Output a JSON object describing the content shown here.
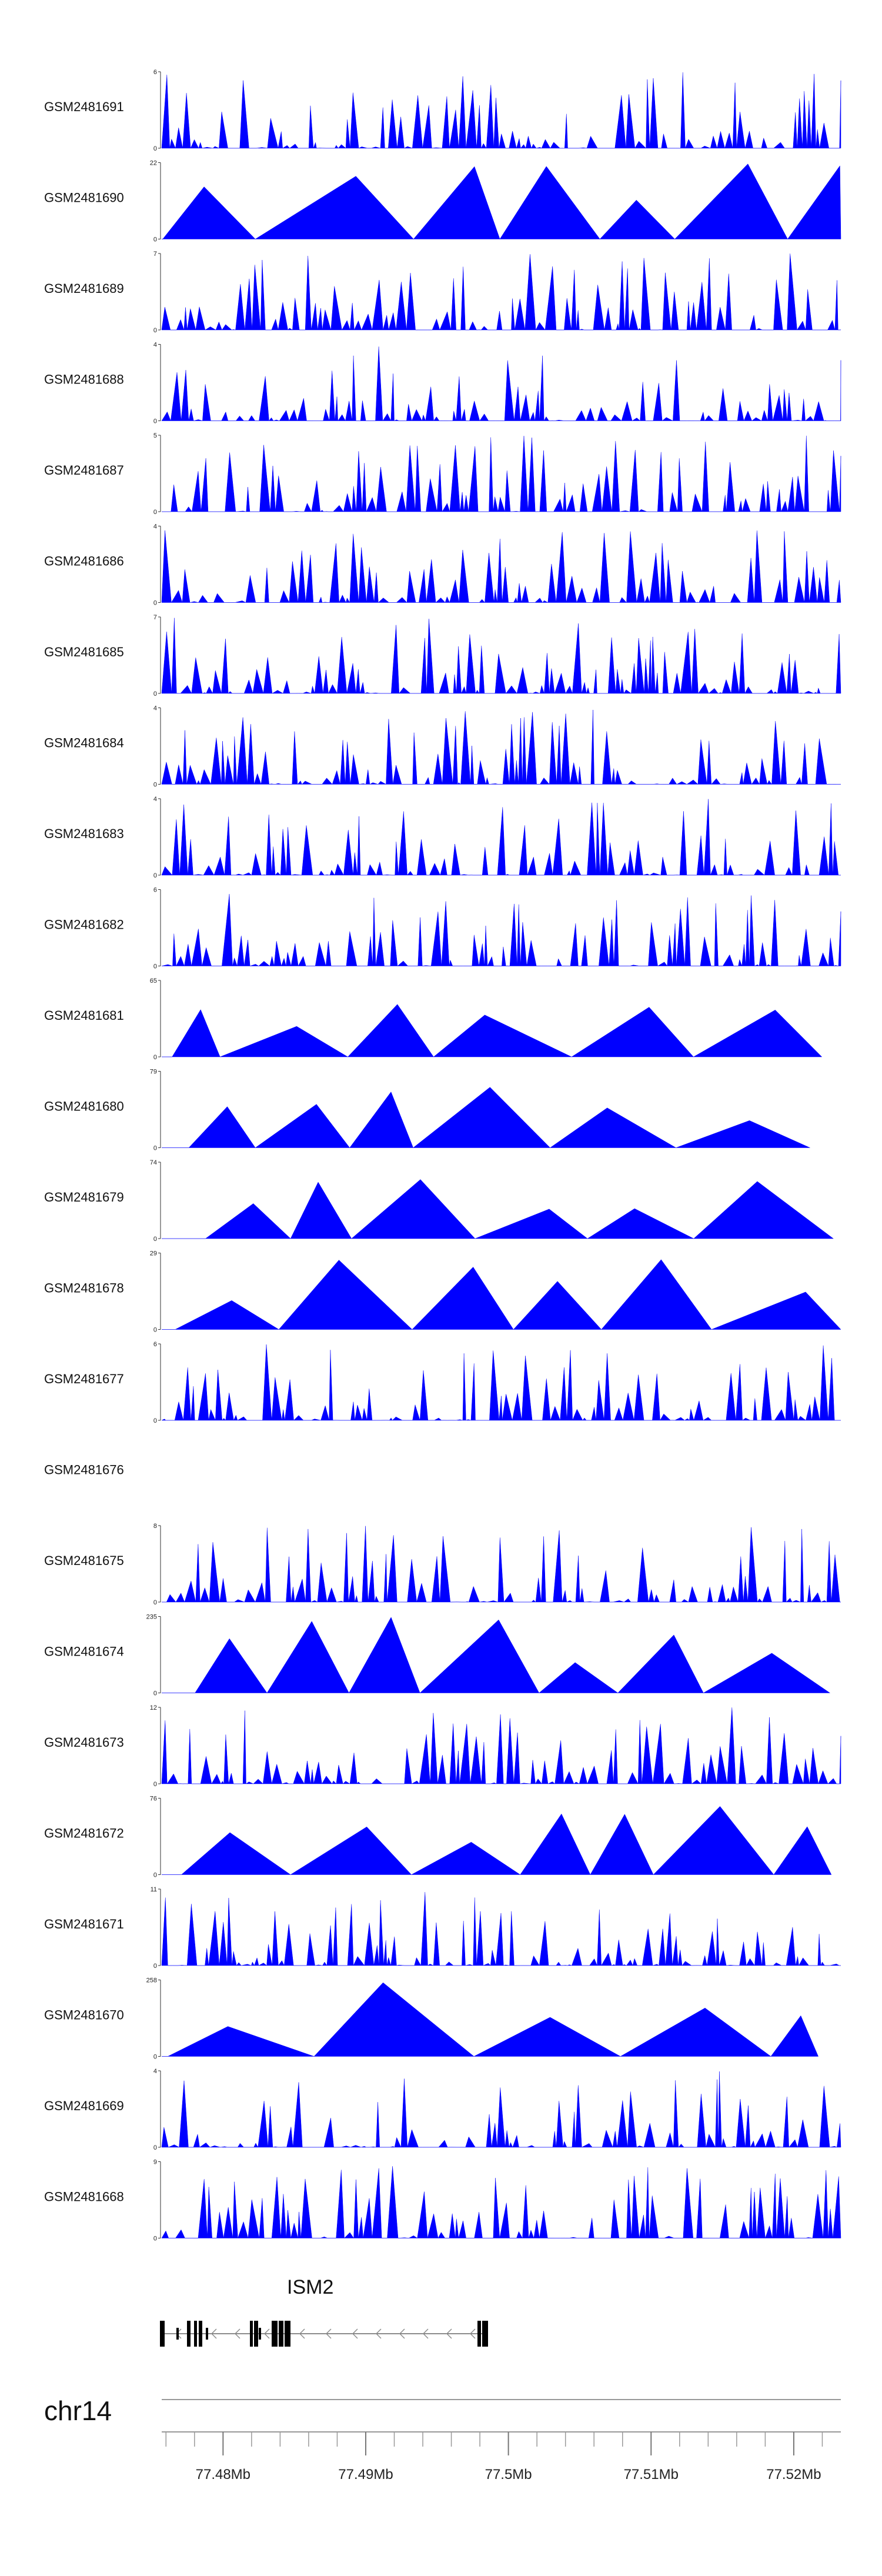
{
  "chart_data": {
    "type": "area",
    "title": "",
    "fill_color": "#0000ff",
    "series": [
      {
        "name": "GSM2481691",
        "ymax": 6,
        "style": "dense"
      },
      {
        "name": "GSM2481690",
        "ymax": 22,
        "style": "sparse"
      },
      {
        "name": "GSM2481689",
        "ymax": 7,
        "style": "dense"
      },
      {
        "name": "GSM2481688",
        "ymax": 4,
        "style": "dense"
      },
      {
        "name": "GSM2481687",
        "ymax": 5,
        "style": "dense"
      },
      {
        "name": "GSM2481686",
        "ymax": 4,
        "style": "dense"
      },
      {
        "name": "GSM2481685",
        "ymax": 7,
        "style": "dense"
      },
      {
        "name": "GSM2481684",
        "ymax": 4,
        "style": "dense"
      },
      {
        "name": "GSM2481683",
        "ymax": 4,
        "style": "dense"
      },
      {
        "name": "GSM2481682",
        "ymax": 6,
        "style": "dense"
      },
      {
        "name": "GSM2481681",
        "ymax": 65,
        "style": "sparse"
      },
      {
        "name": "GSM2481680",
        "ymax": 79,
        "style": "sparse"
      },
      {
        "name": "GSM2481679",
        "ymax": 74,
        "style": "sparse"
      },
      {
        "name": "GSM2481678",
        "ymax": 29,
        "style": "sparse"
      },
      {
        "name": "GSM2481677",
        "ymax": 6,
        "style": "dense"
      },
      {
        "name": "GSM2481676",
        "ymax": null,
        "style": "empty"
      },
      {
        "name": "GSM2481675",
        "ymax": 8,
        "style": "dense"
      },
      {
        "name": "GSM2481674",
        "ymax": 235,
        "style": "sparse"
      },
      {
        "name": "GSM2481673",
        "ymax": 12,
        "style": "dense"
      },
      {
        "name": "GSM2481672",
        "ymax": 76,
        "style": "sparse"
      },
      {
        "name": "GSM2481671",
        "ymax": 11,
        "style": "dense"
      },
      {
        "name": "GSM2481670",
        "ymax": 258,
        "style": "sparse"
      },
      {
        "name": "GSM2481669",
        "ymax": 4,
        "style": "dense"
      },
      {
        "name": "GSM2481668",
        "ymax": 9,
        "style": "dense"
      }
    ],
    "gene": {
      "name": "ISM2",
      "strand": "-"
    },
    "chromosome": "chr14",
    "xlabel": "",
    "xlim_mb": [
      77.4757,
      77.5233
    ],
    "x_tick_labels": [
      "77.48Mb",
      "77.49Mb",
      "77.5Mb",
      "77.51Mb",
      "77.52Mb"
    ],
    "x_tick_values_mb": [
      77.48,
      77.49,
      77.5,
      77.51,
      77.52
    ]
  }
}
